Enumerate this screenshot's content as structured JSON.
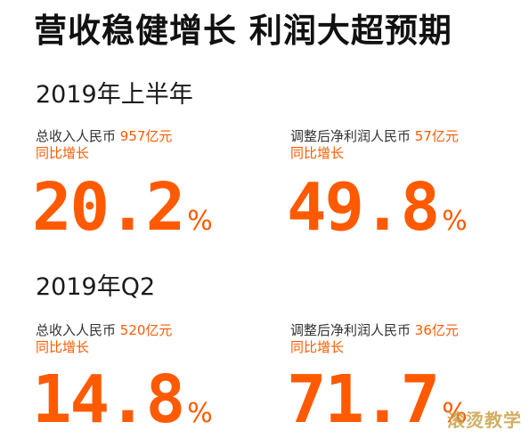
{
  "title": "营收稳健增长 利润大超预期",
  "sections": [
    {
      "period": "2019年上半年",
      "metrics": [
        {
          "label": "总收入人民币",
          "amount": "957亿元",
          "growth_label": "同比增长",
          "value": "20.2",
          "unit": "%"
        },
        {
          "label": "调整后净利润人民币",
          "amount": "57亿元",
          "growth_label": "同比增长",
          "value": "49.8",
          "unit": "%"
        }
      ]
    },
    {
      "period": "2019年Q2",
      "metrics": [
        {
          "label": "总收入人民币",
          "amount": "520亿元",
          "growth_label": "同比增长",
          "value": "14.8",
          "unit": "%"
        },
        {
          "label": "调整后净利润人民币",
          "amount": "36亿元",
          "growth_label": "同比增长",
          "value": "71.7",
          "unit": "%"
        }
      ]
    }
  ],
  "watermark": "滚烫教学",
  "colors": {
    "accent": "#ff5a00",
    "text": "#1a1a1a"
  }
}
